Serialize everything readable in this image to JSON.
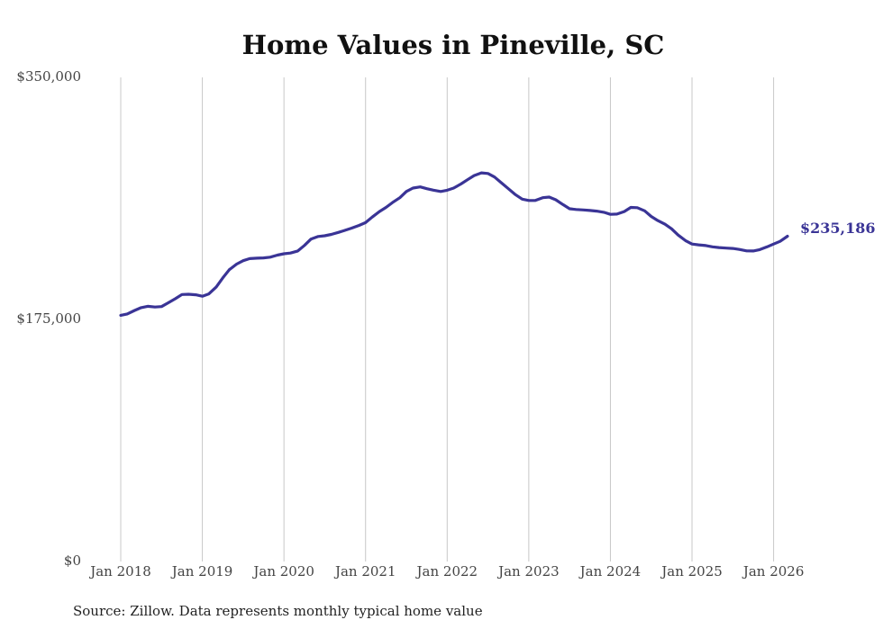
{
  "chart_data": {
    "type": "line",
    "title": "Home Values in Pineville, SC",
    "source": "Source: Zillow. Data represents monthly typical home value",
    "line_color": "#3a3496",
    "ylim": [
      0,
      350000
    ],
    "yticks": [
      {
        "value": 0,
        "label": "$0"
      },
      {
        "value": 175000,
        "label": "$175,000"
      },
      {
        "value": 350000,
        "label": "$350,000"
      }
    ],
    "xlim": [
      2018.0,
      2026.17
    ],
    "xticks": [
      {
        "value": 2018,
        "label": "Jan 2018"
      },
      {
        "value": 2019,
        "label": "Jan 2019"
      },
      {
        "value": 2020,
        "label": "Jan 2020"
      },
      {
        "value": 2021,
        "label": "Jan 2021"
      },
      {
        "value": 2022,
        "label": "Jan 2022"
      },
      {
        "value": 2023,
        "label": "Jan 2023"
      },
      {
        "value": 2024,
        "label": "Jan 2024"
      },
      {
        "value": 2025,
        "label": "Jan 2025"
      },
      {
        "value": 2026,
        "label": "Jan 2026"
      }
    ],
    "grid": "vertical",
    "end_label": "$235,186",
    "series": [
      {
        "name": "Typical home value",
        "x": [
          2018.0,
          2018.08,
          2018.17,
          2018.25,
          2018.33,
          2018.42,
          2018.5,
          2018.58,
          2018.67,
          2018.75,
          2018.83,
          2018.92,
          2019.0,
          2019.08,
          2019.17,
          2019.25,
          2019.33,
          2019.42,
          2019.5,
          2019.58,
          2019.67,
          2019.75,
          2019.83,
          2019.92,
          2020.0,
          2020.08,
          2020.17,
          2020.25,
          2020.33,
          2020.42,
          2020.5,
          2020.58,
          2020.67,
          2020.75,
          2020.83,
          2020.92,
          2021.0,
          2021.08,
          2021.17,
          2021.25,
          2021.33,
          2021.42,
          2021.5,
          2021.58,
          2021.67,
          2021.75,
          2021.83,
          2021.92,
          2022.0,
          2022.08,
          2022.17,
          2022.25,
          2022.33,
          2022.42,
          2022.5,
          2022.58,
          2022.67,
          2022.75,
          2022.83,
          2022.92,
          2023.0,
          2023.08,
          2023.17,
          2023.25,
          2023.33,
          2023.42,
          2023.5,
          2023.58,
          2023.67,
          2023.75,
          2023.83,
          2023.92,
          2024.0,
          2024.08,
          2024.17,
          2024.25,
          2024.33,
          2024.42,
          2024.5,
          2024.58,
          2024.67,
          2024.75,
          2024.83,
          2024.92,
          2025.0,
          2025.08,
          2025.17,
          2025.25,
          2025.33,
          2025.42,
          2025.5,
          2025.58,
          2025.67,
          2025.75,
          2025.83,
          2025.92,
          2026.0,
          2026.08,
          2026.17
        ],
        "values": [
          178000,
          179000,
          181500,
          183500,
          184500,
          184000,
          184300,
          187000,
          190000,
          193000,
          193200,
          192800,
          191800,
          193500,
          198500,
          205000,
          211000,
          215000,
          217500,
          219000,
          219300,
          219500,
          220000,
          221500,
          222500,
          223000,
          224500,
          228500,
          233000,
          235000,
          235500,
          236500,
          238000,
          239500,
          241000,
          243000,
          245000,
          249000,
          253000,
          256000,
          259500,
          263000,
          267500,
          270000,
          270800,
          269500,
          268500,
          267500,
          268400,
          270000,
          273000,
          276000,
          279000,
          281000,
          280500,
          278000,
          273500,
          269500,
          265500,
          262000,
          261000,
          261000,
          263000,
          263500,
          261500,
          258000,
          255000,
          254500,
          254200,
          253800,
          253300,
          252500,
          251000,
          251200,
          253000,
          256000,
          255800,
          253500,
          249500,
          246500,
          243800,
          240500,
          236000,
          232000,
          229500,
          228900,
          228400,
          227500,
          227000,
          226600,
          226300,
          225600,
          224600,
          224500,
          225500,
          227500,
          229500,
          231500,
          235186
        ]
      }
    ]
  }
}
